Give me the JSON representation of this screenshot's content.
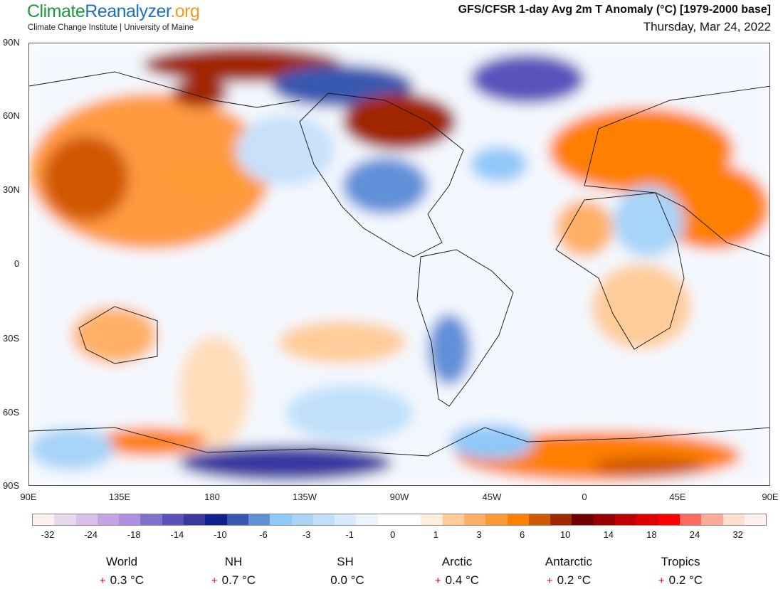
{
  "header": {
    "logo_part1": "Climate",
    "logo_part2": "Reanalyzer",
    "logo_part3": ".org",
    "subtitle": "Climate Change Institute | University of Maine",
    "title": "GFS/CFSR 1-day Avg 2m T Anomaly (°C) [1979-2000 base]",
    "date": "Thursday, Mar 24, 2022"
  },
  "map": {
    "lat_labels": [
      "90N",
      "60N",
      "30N",
      "0",
      "30S",
      "60S",
      "90S"
    ],
    "lon_labels": [
      "90E",
      "135E",
      "180",
      "135W",
      "90W",
      "45W",
      "0",
      "45E",
      "90E"
    ]
  },
  "colorbar": {
    "labels": [
      "-32",
      "-24",
      "-18",
      "-14",
      "-10",
      "-6",
      "-3",
      "-1",
      "0",
      "1",
      "3",
      "6",
      "10",
      "14",
      "18",
      "24",
      "32"
    ],
    "colors": [
      "#fff0f0",
      "#e8d8ee",
      "#d8c0ea",
      "#c4a4e4",
      "#b08ee0",
      "#8070d0",
      "#5a52bc",
      "#3838a0",
      "#102090",
      "#3858b0",
      "#6090d8",
      "#90c8f8",
      "#a8d4f8",
      "#c0e0fa",
      "#d8eafc",
      "#ecf4fe",
      "#ffffff",
      "#ffffff",
      "#ffeedd",
      "#ffcc99",
      "#ffb066",
      "#ff9933",
      "#ff8000",
      "#d05800",
      "#a02800",
      "#700000",
      "#980000",
      "#c00000",
      "#e00000",
      "#ff0000",
      "#ff6a60",
      "#ffaa99",
      "#fde0d0",
      "#fff0f0"
    ]
  },
  "stats": [
    {
      "name": "World",
      "sign": "+",
      "value": "0.3 °C"
    },
    {
      "name": "NH",
      "sign": "+",
      "value": "0.7 °C"
    },
    {
      "name": "SH",
      "sign": "",
      "value": "0.0 °C"
    },
    {
      "name": "Arctic",
      "sign": "+",
      "value": "0.4 °C"
    },
    {
      "name": "Antarctic",
      "sign": "+",
      "value": "0.2 °C"
    },
    {
      "name": "Tropics",
      "sign": "+",
      "value": "0.2 °C"
    }
  ]
}
